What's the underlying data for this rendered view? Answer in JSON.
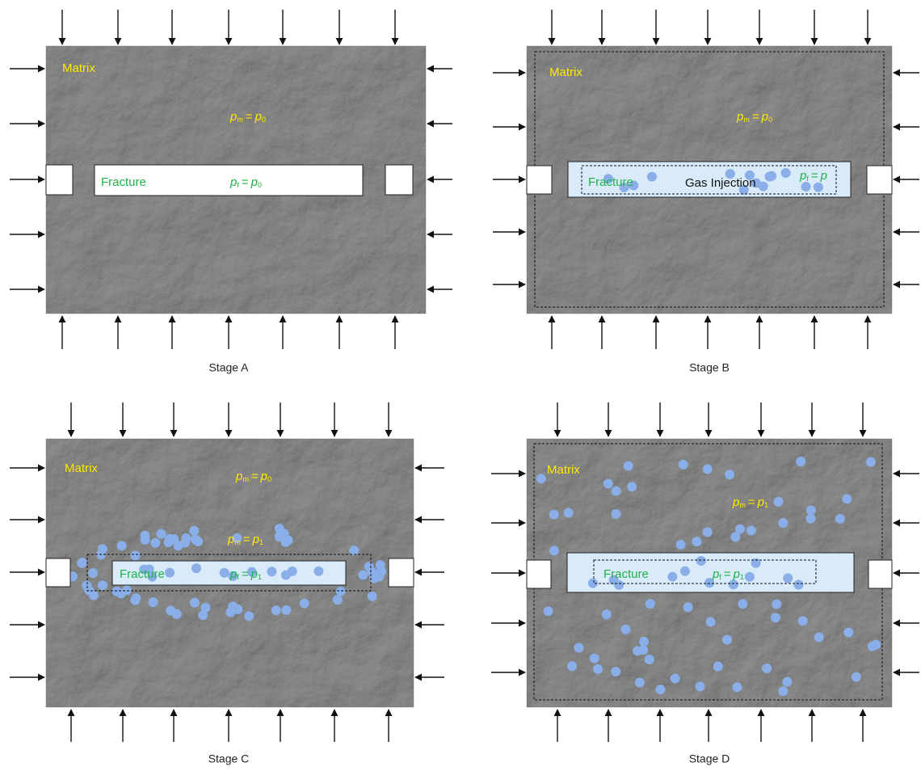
{
  "panels": [
    {
      "matrix_label": "Matrix",
      "pm": {
        "lhs": "p",
        "lhs_sub": "m",
        "op": "=",
        "rhs": "p",
        "rhs_sub": "0"
      },
      "fracture_label": "Fracture",
      "pf": {
        "lhs": "p",
        "lhs_sub": "f",
        "op": "=",
        "rhs": "p",
        "rhs_sub": "0"
      },
      "stage_label": "Stage A"
    },
    {
      "matrix_label": "Matrix",
      "pm": {
        "lhs": "p",
        "lhs_sub": "m",
        "op": "=",
        "rhs": "p",
        "rhs_sub": "0"
      },
      "fracture_label": "Fracture",
      "injection_label": "Gas Injection",
      "pf": {
        "lhs": "p",
        "lhs_sub": "f",
        "op": "=",
        "rhs": "p"
      },
      "stage_label": "Stage B"
    },
    {
      "matrix_label": "Matrix",
      "pm": {
        "lhs": "p",
        "lhs_sub": "m",
        "op": "=",
        "rhs": "p",
        "rhs_sub": "0"
      },
      "pm_inner": {
        "lhs": "p",
        "lhs_sub": "m",
        "op": "=",
        "rhs": "p",
        "rhs_sub": "1"
      },
      "fracture_label": "Fracture",
      "pf": {
        "lhs": "p",
        "lhs_sub": "f",
        "op": "=",
        "rhs": "p",
        "rhs_sub": "1"
      },
      "stage_label": "Stage C"
    },
    {
      "matrix_label": "Matrix",
      "pm": {
        "lhs": "p",
        "lhs_sub": "m",
        "op": "=",
        "rhs": "p",
        "rhs_sub": "1"
      },
      "fracture_label": "Fracture",
      "pf": {
        "lhs": "p",
        "lhs_sub": "f",
        "op": "=",
        "rhs": "p",
        "rhs_sub": "1"
      },
      "stage_label": "Stage D"
    }
  ]
}
